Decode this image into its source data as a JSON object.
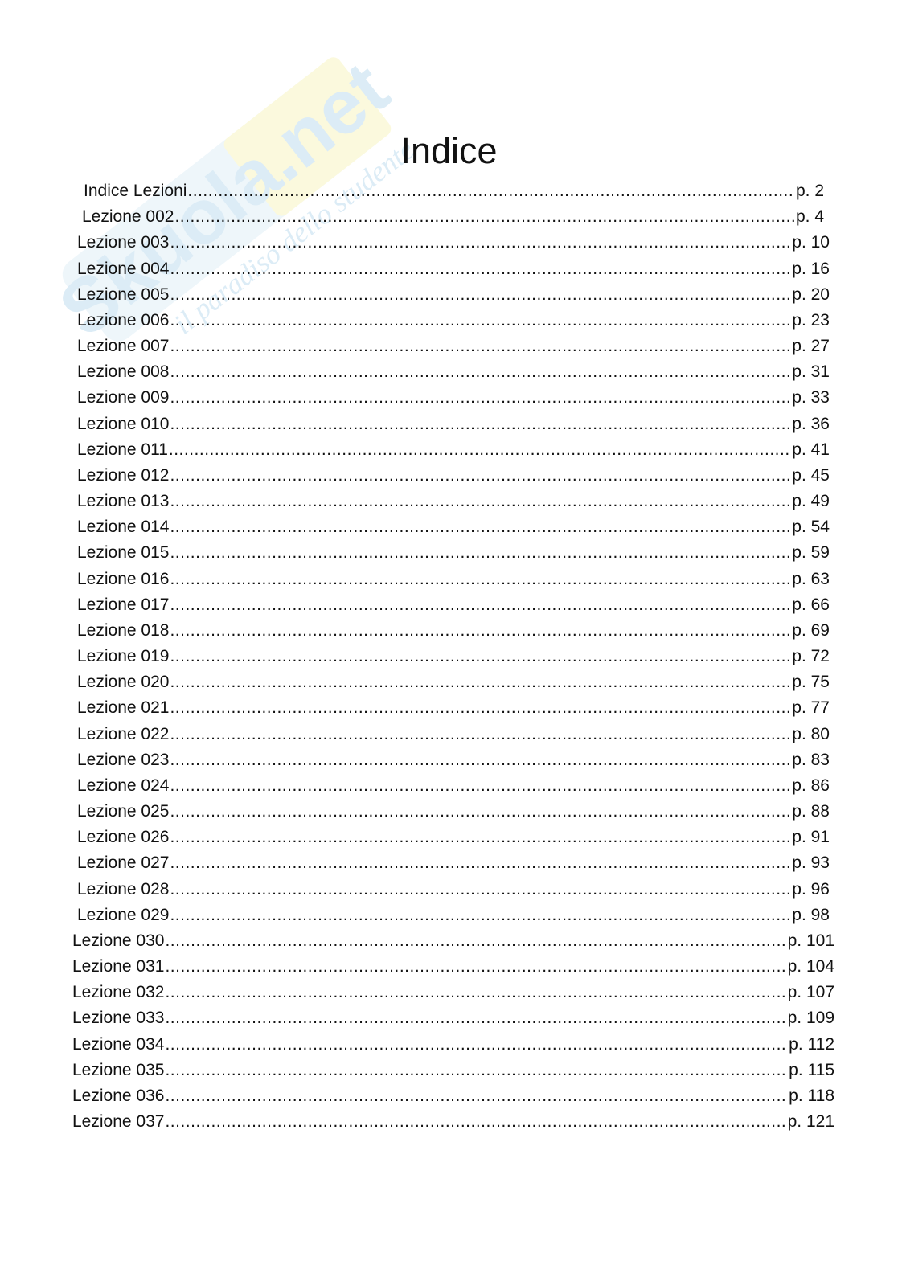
{
  "watermark": {
    "brand": "Skuola.net",
    "tagline": "il paradiso dello studente"
  },
  "title": "Indice",
  "entries": [
    {
      "label": "Indice Lezioni",
      "page": "p. 2"
    },
    {
      "label": "Lezione 002",
      "page": "p. 4"
    },
    {
      "label": "Lezione 003",
      "page": "p. 10"
    },
    {
      "label": "Lezione 004",
      "page": "p. 16"
    },
    {
      "label": "Lezione 005",
      "page": "p. 20"
    },
    {
      "label": "Lezione 006",
      "page": "p. 23"
    },
    {
      "label": "Lezione 007",
      "page": "p. 27"
    },
    {
      "label": "Lezione 008",
      "page": "p. 31"
    },
    {
      "label": "Lezione 009",
      "page": "p. 33"
    },
    {
      "label": "Lezione 010",
      "page": "p. 36"
    },
    {
      "label": "Lezione 011",
      "page": "p. 41"
    },
    {
      "label": "Lezione 012",
      "page": "p. 45"
    },
    {
      "label": "Lezione 013",
      "page": "p. 49"
    },
    {
      "label": "Lezione 014",
      "page": "p. 54"
    },
    {
      "label": "Lezione 015",
      "page": "p. 59"
    },
    {
      "label": "Lezione 016",
      "page": "p. 63"
    },
    {
      "label": "Lezione 017",
      "page": "p. 66"
    },
    {
      "label": "Lezione 018",
      "page": "p. 69"
    },
    {
      "label": "Lezione 019",
      "page": "p. 72"
    },
    {
      "label": "Lezione 020",
      "page": "p. 75"
    },
    {
      "label": "Lezione 021",
      "page": "p. 77"
    },
    {
      "label": "Lezione 022",
      "page": "p. 80"
    },
    {
      "label": "Lezione 023",
      "page": "p. 83"
    },
    {
      "label": "Lezione 024",
      "page": "p. 86"
    },
    {
      "label": "Lezione 025",
      "page": "p. 88"
    },
    {
      "label": "Lezione 026",
      "page": "p. 91"
    },
    {
      "label": "Lezione 027",
      "page": "p. 93"
    },
    {
      "label": "Lezione 028",
      "page": "p. 96"
    },
    {
      "label": "Lezione 029",
      "page": "p. 98"
    },
    {
      "label": "Lezione 030",
      "page": "p. 101"
    },
    {
      "label": "Lezione 031",
      "page": "p. 104"
    },
    {
      "label": "Lezione 032",
      "page": "p. 107"
    },
    {
      "label": "Lezione 033",
      "page": "p. 109"
    },
    {
      "label": "Lezione 034",
      "page": "p. 112"
    },
    {
      "label": "Lezione 035",
      "page": "p. 115"
    },
    {
      "label": "Lezione 036",
      "page": "p. 118"
    },
    {
      "label": "Lezione 037",
      "page": "p. 121"
    }
  ]
}
